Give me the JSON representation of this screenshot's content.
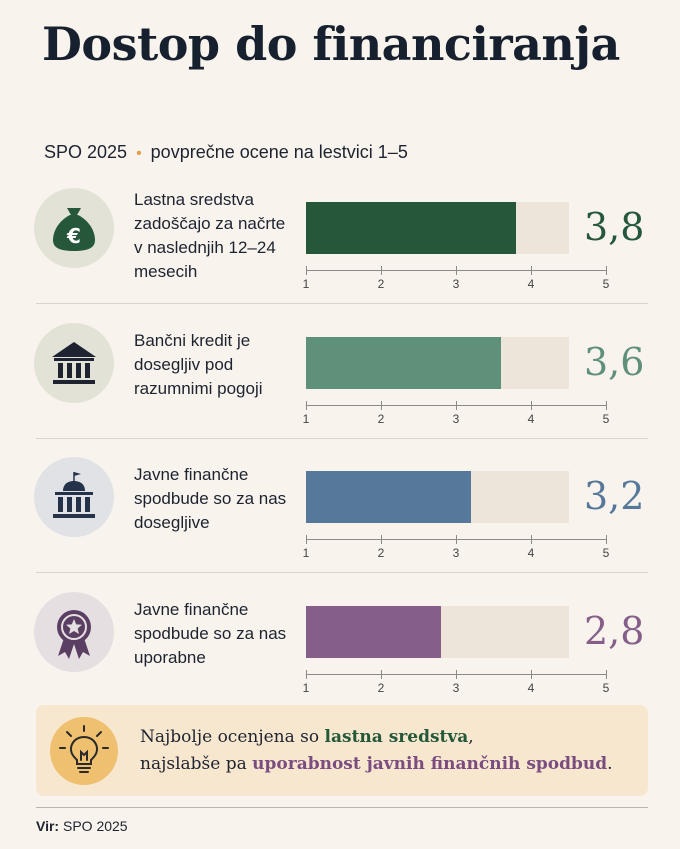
{
  "header": {
    "title": "Dostop do financiranja",
    "subtitle_source": "SPO 2025",
    "subtitle_dot": "•",
    "subtitle_note": "povprečne ocene na lestvici 1–5"
  },
  "chart_data": {
    "type": "bar",
    "orientation": "horizontal",
    "xlim": [
      1,
      5
    ],
    "ticks": [
      "1",
      "2",
      "3",
      "4",
      "5"
    ],
    "grid": false,
    "categories": [
      "Lastna sredstva zadoščajo za načrte v naslednjih 12–24 mesecih",
      "Bančni kredit je dosegljiv pod razumnimi pogoji",
      "Javne finančne spodbude so za nas dosegljive",
      "Javne finančne spodbude so za nas uporabne"
    ],
    "values": [
      3.8,
      3.6,
      3.2,
      2.8
    ],
    "value_labels": [
      "3,8",
      "3,6",
      "3,2",
      "2,8"
    ],
    "colors": [
      "#25583a",
      "#5f917a",
      "#56789a",
      "#855f8a"
    ],
    "icons": [
      "money-bag-euro-icon",
      "bank-icon",
      "government-building-icon",
      "award-badge-icon"
    ]
  },
  "rows": [
    {
      "label": "Lastna sredstva zadoščajo za načrte v naslednjih 12–24 mesecih",
      "value_label": "3,8",
      "icon": "money-bag-euro-icon",
      "icon_bg": "#e2e2d6",
      "color": "#25583a"
    },
    {
      "label": "Bančni kredit je dosegljiv pod razumnimi pogoji",
      "value_label": "3,6",
      "icon": "bank-icon",
      "icon_bg": "#e2e2d6",
      "color": "#5f917a"
    },
    {
      "label": "Javne finančne spodbude so za nas dosegljive",
      "value_label": "3,2",
      "icon": "government-building-icon",
      "icon_bg": "#e0e2e6",
      "color": "#56789a"
    },
    {
      "label": "Javne finančne spodbude so za nas uporabne",
      "value_label": "2,8",
      "icon": "award-badge-icon",
      "icon_bg": "#e6dfe2",
      "color": "#855f8a"
    }
  ],
  "callout": {
    "icon": "lightbulb-icon",
    "line1_prefix": "Najbolje ocenjena so ",
    "line1_highlight": "lastna sredstva",
    "line1_suffix": ",",
    "line2_prefix": "najslabše pa ",
    "line2_highlight": "uporabnost javnih finančnih spodbud",
    "line2_suffix": "."
  },
  "footer": {
    "source_label": "Vir:",
    "source_value": "SPO 2025"
  }
}
